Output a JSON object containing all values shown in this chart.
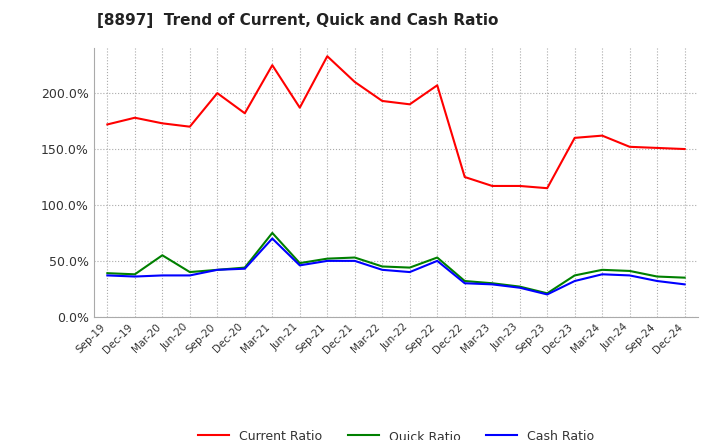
{
  "title": "[8897]  Trend of Current, Quick and Cash Ratio",
  "labels": [
    "Sep-19",
    "Dec-19",
    "Mar-20",
    "Jun-20",
    "Sep-20",
    "Dec-20",
    "Mar-21",
    "Jun-21",
    "Sep-21",
    "Dec-21",
    "Mar-22",
    "Jun-22",
    "Sep-22",
    "Dec-22",
    "Mar-23",
    "Jun-23",
    "Sep-23",
    "Dec-23",
    "Mar-24",
    "Jun-24",
    "Sep-24",
    "Dec-24"
  ],
  "current_ratio": [
    172,
    178,
    173,
    170,
    200,
    182,
    225,
    187,
    233,
    210,
    193,
    190,
    207,
    125,
    117,
    117,
    115,
    160,
    162,
    152,
    151,
    150
  ],
  "quick_ratio": [
    39,
    38,
    55,
    40,
    42,
    44,
    75,
    48,
    52,
    53,
    45,
    44,
    53,
    32,
    30,
    27,
    21,
    37,
    42,
    41,
    36,
    35
  ],
  "cash_ratio": [
    37,
    36,
    37,
    37,
    42,
    43,
    70,
    46,
    50,
    50,
    42,
    40,
    50,
    30,
    29,
    26,
    20,
    32,
    38,
    37,
    32,
    29
  ],
  "ylim": [
    0,
    240
  ],
  "yticks": [
    0,
    50,
    100,
    150,
    200
  ],
  "current_color": "#ff0000",
  "quick_color": "#008000",
  "cash_color": "#0000ff",
  "bg_color": "#ffffff",
  "plot_bg_color": "#ffffff",
  "grid_color": "#aaaaaa",
  "legend_labels": [
    "Current Ratio",
    "Quick Ratio",
    "Cash Ratio"
  ]
}
